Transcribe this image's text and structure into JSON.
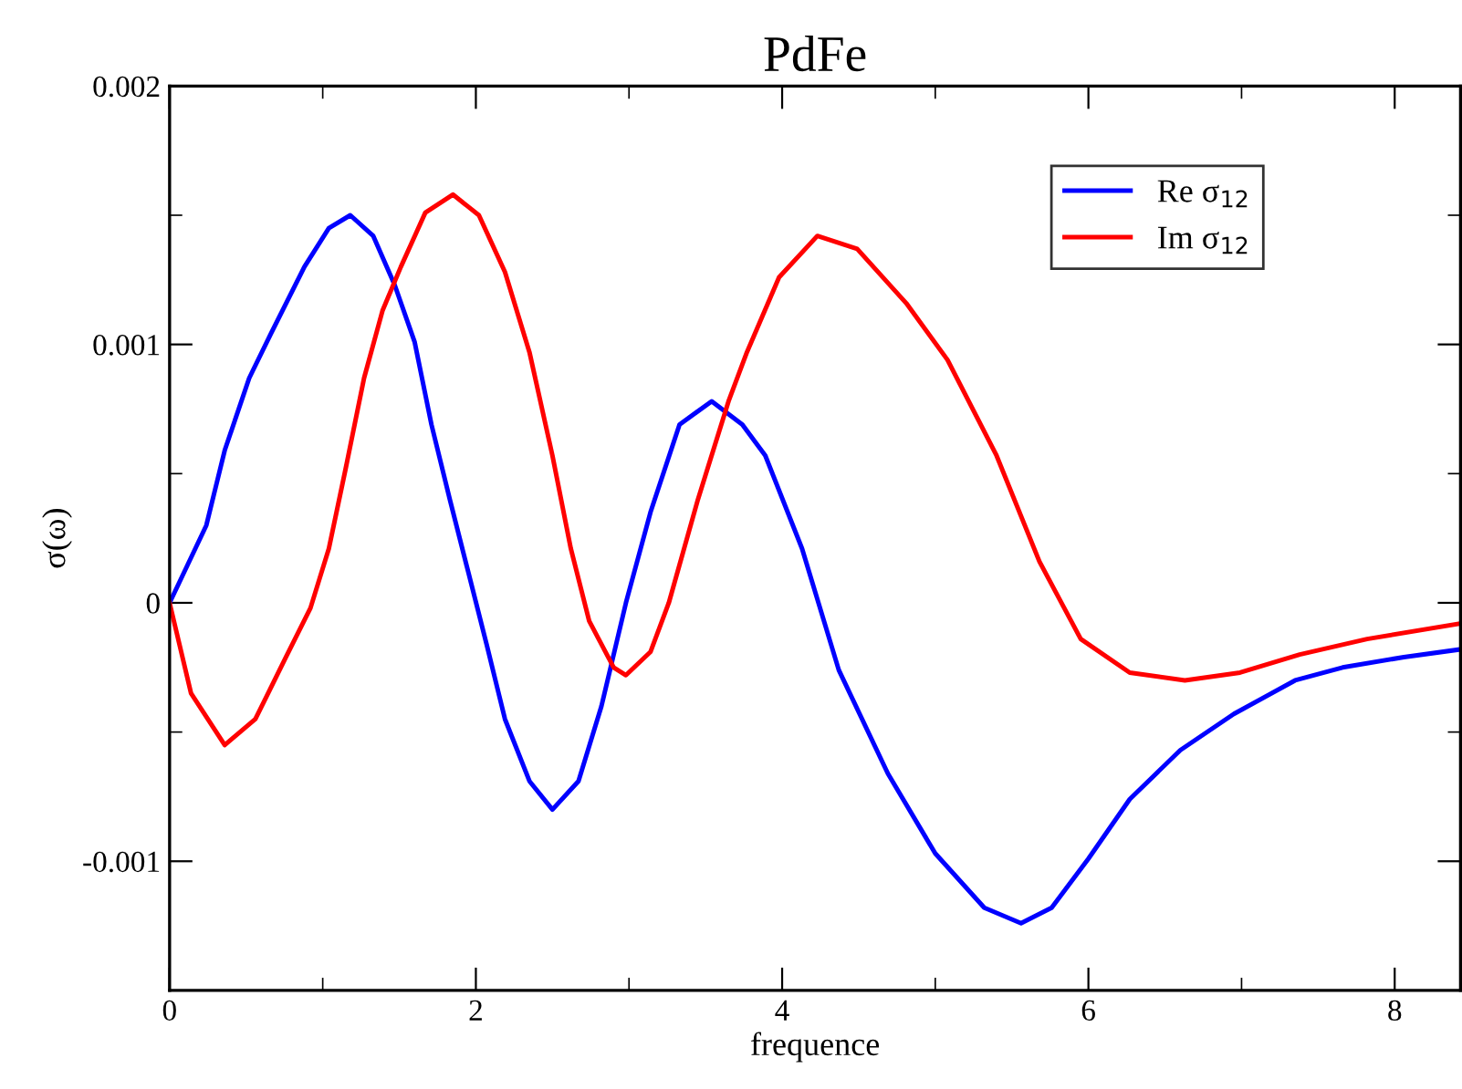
{
  "chart_data": {
    "type": "line",
    "title": "PdFe",
    "xlabel": "frequence",
    "ylabel": "σ(ω)",
    "xlim": [
      0,
      8.43
    ],
    "ylim": [
      -0.0015,
      0.002
    ],
    "xticks": [
      0,
      2,
      4,
      6,
      8
    ],
    "yticks": [
      -0.001,
      0,
      0.001,
      0.002
    ],
    "grid": false,
    "legend": "top right",
    "marker": "none",
    "line_style": "solid",
    "series": [
      {
        "name": "Re σ$_{12}$",
        "color": "#0000ff",
        "x": [
          0,
          0.24,
          0.36,
          0.52,
          0.66,
          0.88,
          1.04,
          1.18,
          1.33,
          1.47,
          1.6,
          1.71,
          1.83,
          1.95,
          2.07,
          2.19,
          2.35,
          2.5,
          2.67,
          2.82,
          2.98,
          3.14,
          3.33,
          3.54,
          3.74,
          3.89,
          4.13,
          4.37,
          4.69,
          5.0,
          5.32,
          5.56,
          5.76,
          6.0,
          6.27,
          6.6,
          6.95,
          7.35,
          7.66,
          8.06,
          8.43
        ],
        "values": [
          0,
          0.0003,
          0.00059,
          0.00087,
          0.00104,
          0.0013,
          0.00145,
          0.0015,
          0.00142,
          0.00123,
          0.00101,
          0.00069,
          0.0004,
          0.00012,
          -0.00016,
          -0.00045,
          -0.00069,
          -0.0008,
          -0.00069,
          -0.0004,
          0,
          0.00035,
          0.00069,
          0.00078,
          0.00069,
          0.00057,
          0.00021,
          -0.00026,
          -0.00066,
          -0.00097,
          -0.00118,
          -0.00124,
          -0.00118,
          -0.00099,
          -0.00076,
          -0.00057,
          -0.00043,
          -0.0003,
          -0.00025,
          -0.00021,
          -0.00018
        ]
      },
      {
        "name": "Im σ$_{12}$",
        "color": "#ff0000",
        "x": [
          0,
          0.14,
          0.36,
          0.56,
          0.76,
          0.92,
          1.04,
          1.15,
          1.27,
          1.39,
          1.51,
          1.67,
          1.85,
          2.02,
          2.19,
          2.35,
          2.5,
          2.62,
          2.74,
          2.9,
          2.98,
          3.14,
          3.26,
          3.45,
          3.65,
          3.77,
          3.98,
          4.23,
          4.49,
          4.81,
          5.08,
          5.4,
          5.68,
          5.95,
          6.27,
          6.63,
          6.99,
          7.38,
          7.82,
          8.43
        ],
        "values": [
          0,
          -0.00035,
          -0.00055,
          -0.00045,
          -0.00021,
          -2e-05,
          0.00021,
          0.00052,
          0.00087,
          0.00113,
          0.0013,
          0.00151,
          0.00158,
          0.0015,
          0.00128,
          0.00097,
          0.00057,
          0.00021,
          -7e-05,
          -0.00025,
          -0.00028,
          -0.00019,
          0,
          0.0004,
          0.00078,
          0.00097,
          0.00126,
          0.00142,
          0.00137,
          0.00116,
          0.00094,
          0.00057,
          0.00016,
          -0.00014,
          -0.00027,
          -0.0003,
          -0.00027,
          -0.0002,
          -0.00014,
          -8e-05
        ]
      }
    ]
  }
}
